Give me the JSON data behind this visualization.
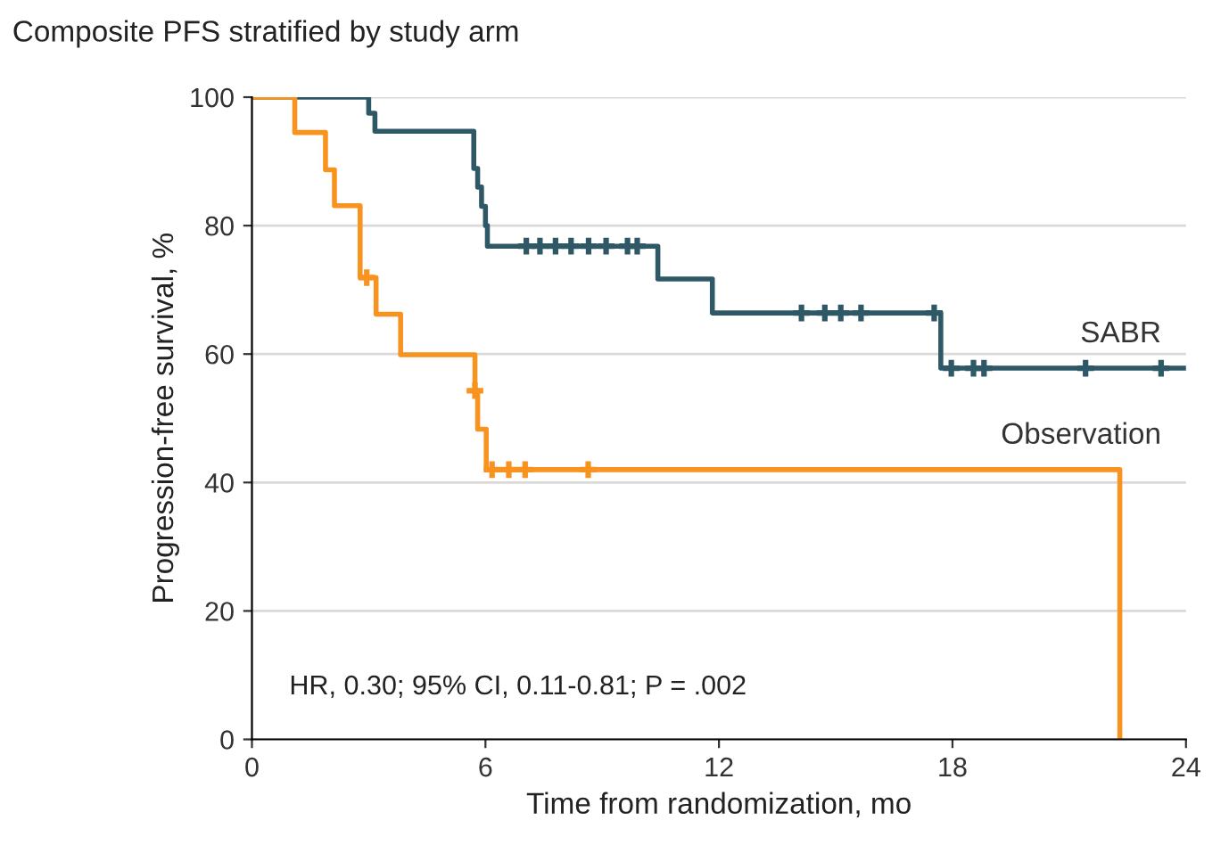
{
  "chart_data": {
    "type": "step",
    "title": "Composite PFS stratified by study arm",
    "xlabel": "Time from randomization, mo",
    "ylabel": "Progression-free survival, %",
    "xlim": [
      0,
      24
    ],
    "xticks": [
      0,
      6,
      12,
      18,
      24
    ],
    "ylim": [
      0,
      100
    ],
    "yticks": [
      0,
      20,
      40,
      60,
      80,
      100
    ],
    "grid": "y",
    "annotations": [
      "HR, 0.30; 95% CI, 0.11-0.81; P = .002"
    ],
    "series": [
      {
        "name": "SABR",
        "color": "#2f5866",
        "x": [
          0,
          3.0,
          3.16,
          5.7,
          5.8,
          5.9,
          6.0,
          6.05,
          10.43,
          11.83,
          17.7,
          24
        ],
        "values": [
          100,
          97.5,
          94.7,
          88.9,
          86,
          83,
          80,
          76.8,
          71.7,
          66.4,
          57.8,
          57.8
        ]
      },
      {
        "name": "Observation",
        "color": "#f7931e",
        "x": [
          0,
          1.1,
          1.89,
          2.12,
          2.78,
          3.19,
          3.82,
          5.73,
          5.8,
          6.02,
          22.3
        ],
        "values": [
          100,
          94.5,
          88.7,
          83.1,
          71.9,
          66.2,
          59.9,
          54.3,
          48.3,
          42,
          0
        ]
      },
      {
        "type": "scatter",
        "marker": "cross",
        "color": "#2f5866",
        "x": [
          7.05,
          7.4,
          7.8,
          8.2,
          8.65,
          9.1,
          9.65,
          9.9,
          14.12,
          14.72,
          15.13,
          15.65,
          17.53,
          17.97,
          18.54,
          18.81,
          21.42,
          23.36
        ],
        "values": [
          76.8,
          76.8,
          76.8,
          76.8,
          76.8,
          76.8,
          76.8,
          76.8,
          66.4,
          66.4,
          66.4,
          66.4,
          66.4,
          57.8,
          57.8,
          57.8,
          57.8,
          57.8
        ]
      },
      {
        "type": "scatter",
        "marker": "cross",
        "color": "#f7931e",
        "x": [
          2.95,
          5.73,
          6.17,
          6.6,
          7.02,
          8.64
        ],
        "values": [
          71.9,
          54.3,
          42,
          42,
          42,
          42
        ]
      }
    ],
    "legend": false
  }
}
